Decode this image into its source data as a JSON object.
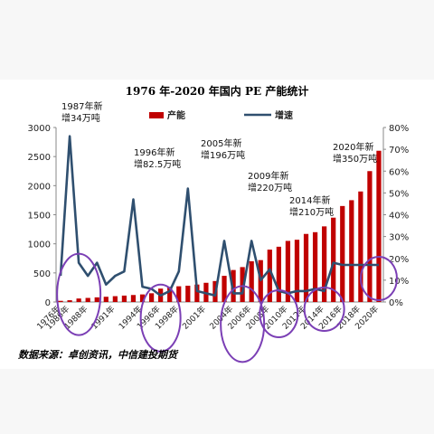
{
  "chart_data": {
    "type": "bar",
    "title": "1976 年-2020 年国内 PE 产能统计",
    "source": "数据来源：卓创资讯，中信建投期货",
    "legend": {
      "position": "top",
      "items": [
        "产能",
        "增速"
      ]
    },
    "x_tick_labels": [
      "1976年",
      "1986年",
      "1988年",
      "1991年",
      "1994年",
      "1996年",
      "1998年",
      "2001年",
      "2004年",
      "2006年",
      "2008年",
      "2010年",
      "2012年",
      "2014年",
      "2016年",
      "2018年",
      "2020年"
    ],
    "years": [
      1976,
      1986,
      1987,
      1988,
      1989,
      1990,
      1991,
      1992,
      1993,
      1994,
      1995,
      1996,
      1997,
      1998,
      1999,
      2000,
      2001,
      2002,
      2003,
      2004,
      2005,
      2006,
      2007,
      2008,
      2009,
      2010,
      2011,
      2012,
      2013,
      2014,
      2015,
      2016,
      2017,
      2018,
      2019,
      2020
    ],
    "series": [
      {
        "name": "产能",
        "type": "bar",
        "axis": "left",
        "color": "#c00000",
        "values": [
          20,
          30,
          60,
          70,
          80,
          90,
          100,
          110,
          120,
          130,
          150,
          230,
          260,
          270,
          280,
          300,
          330,
          360,
          450,
          550,
          600,
          700,
          720,
          900,
          950,
          1050,
          1070,
          1170,
          1200,
          1300,
          1450,
          1650,
          1750,
          1900,
          2250,
          2600
        ]
      },
      {
        "name": "增速",
        "type": "line",
        "axis": "right",
        "color": "#2f4f6f",
        "values": [
          0.12,
          0.76,
          0.18,
          0.12,
          0.18,
          0.08,
          0.12,
          0.14,
          0.47,
          0.07,
          0.06,
          0.03,
          0.05,
          0.14,
          0.52,
          0.05,
          0.04,
          0.03,
          0.28,
          0.04,
          0.04,
          0.28,
          0.1,
          0.15,
          0.05,
          0.04,
          0.05,
          0.05,
          0.06,
          0.05,
          0.18,
          0.17,
          0.17,
          0.17,
          0.17,
          0.17
        ]
      }
    ],
    "y_left": {
      "min": 0,
      "max": 3000,
      "ticks": [
        "0",
        "500",
        "1000",
        "1500",
        "2000",
        "2500",
        "3000"
      ]
    },
    "y_right": {
      "min": 0,
      "max": 0.8,
      "ticks": [
        "0%",
        "10%",
        "20%",
        "30%",
        "40%",
        "50%",
        "60%",
        "70%",
        "80%"
      ]
    },
    "annotations": [
      {
        "lines": [
          "1987年新",
          "增34万吨"
        ],
        "year": 1987
      },
      {
        "lines": [
          "1996年新",
          "增82.5万吨"
        ],
        "year": 1996
      },
      {
        "lines": [
          "2005年新",
          "增196万吨"
        ],
        "year": 2005
      },
      {
        "lines": [
          "2009年新",
          "增220万吨"
        ],
        "year": 2009
      },
      {
        "lines": [
          "2014年新",
          "增210万吨"
        ],
        "year": 2014
      },
      {
        "lines": [
          "2020年新",
          "增350万吨"
        ],
        "year": 2020
      }
    ]
  }
}
